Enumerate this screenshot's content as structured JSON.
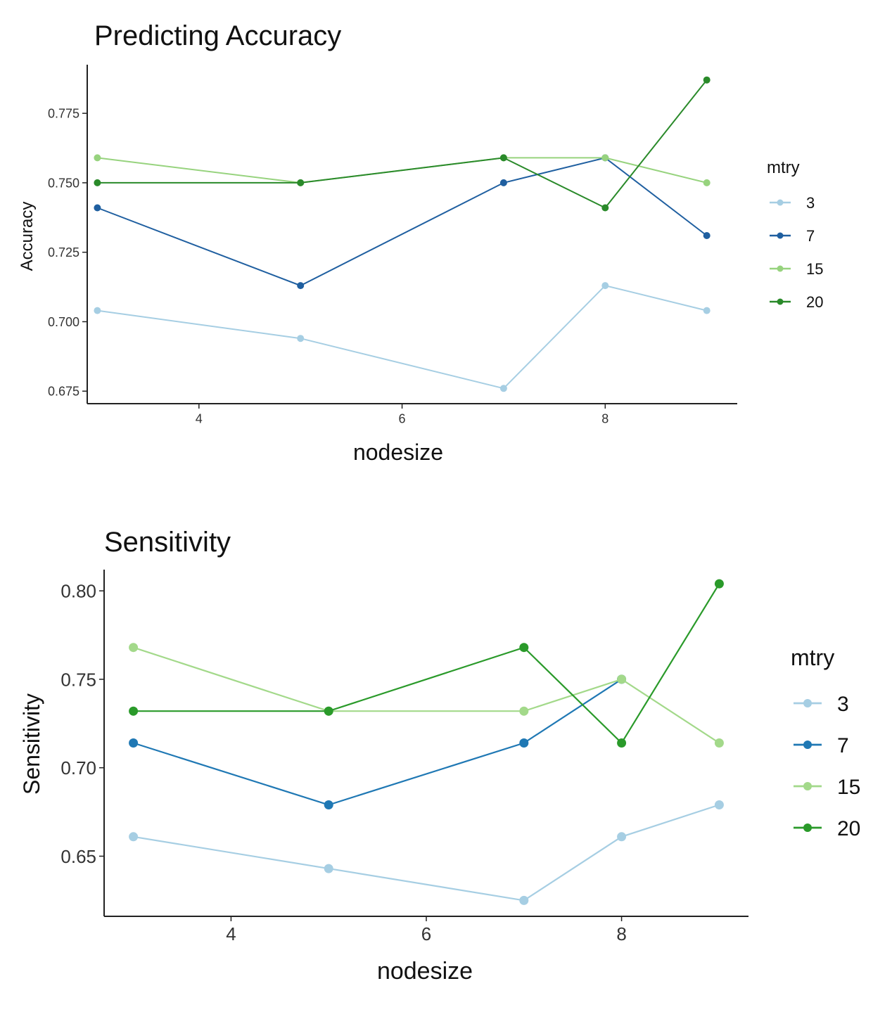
{
  "chart_data": [
    {
      "type": "line",
      "title": "Predicting Accuracy",
      "xlabel": "nodesize",
      "ylabel": "Accuracy",
      "xlim": [
        2.9,
        9.3
      ],
      "ylim": [
        0.6705,
        0.7925
      ],
      "x_ticks": [
        "4",
        "6",
        "8"
      ],
      "x_tick_values": [
        4,
        6,
        8
      ],
      "y_ticks": [
        "0.675",
        "0.700",
        "0.725",
        "0.750",
        "0.775"
      ],
      "y_tick_values": [
        0.675,
        0.7,
        0.725,
        0.75,
        0.775
      ],
      "x": [
        3,
        5,
        7,
        8,
        9
      ],
      "legend_title": "mtry",
      "legend_position": "right",
      "grid": false,
      "series": [
        {
          "name": "3",
          "color": "#a6cee3",
          "values": [
            0.704,
            0.694,
            0.676,
            0.713,
            0.704
          ]
        },
        {
          "name": "7",
          "color": "#1f5fa0",
          "values": [
            0.741,
            0.713,
            0.75,
            0.759,
            0.731
          ]
        },
        {
          "name": "15",
          "color": "#97d37e",
          "values": [
            0.759,
            0.75,
            0.759,
            0.759,
            0.75
          ]
        },
        {
          "name": "20",
          "color": "#2a8a2a",
          "values": [
            0.75,
            0.75,
            0.759,
            0.741,
            0.787
          ]
        }
      ]
    },
    {
      "type": "line",
      "title": "Sensitivity",
      "xlabel": "nodesize",
      "ylabel": "Sensitivity",
      "xlim": [
        2.7,
        9.3
      ],
      "ylim": [
        0.616,
        0.812
      ],
      "x_ticks": [
        "4",
        "6",
        "8"
      ],
      "x_tick_values": [
        4,
        6,
        8
      ],
      "y_ticks": [
        "0.65",
        "0.70",
        "0.75",
        "0.80"
      ],
      "y_tick_values": [
        0.65,
        0.7,
        0.75,
        0.8
      ],
      "x": [
        3,
        5,
        7,
        8,
        9
      ],
      "legend_title": "mtry",
      "legend_position": "right",
      "grid": false,
      "series": [
        {
          "name": "3",
          "color": "#a6cee3",
          "values": [
            0.661,
            0.643,
            0.625,
            0.661,
            0.679
          ]
        },
        {
          "name": "7",
          "color": "#1f78b4",
          "values": [
            0.714,
            0.679,
            0.714,
            0.75,
            null
          ]
        },
        {
          "name": "15",
          "color": "#a3d98a",
          "values": [
            0.768,
            0.732,
            0.732,
            0.75,
            0.714
          ]
        },
        {
          "name": "20",
          "color": "#2a9a2a",
          "values": [
            0.732,
            0.732,
            0.768,
            0.714,
            0.804
          ]
        }
      ]
    }
  ]
}
